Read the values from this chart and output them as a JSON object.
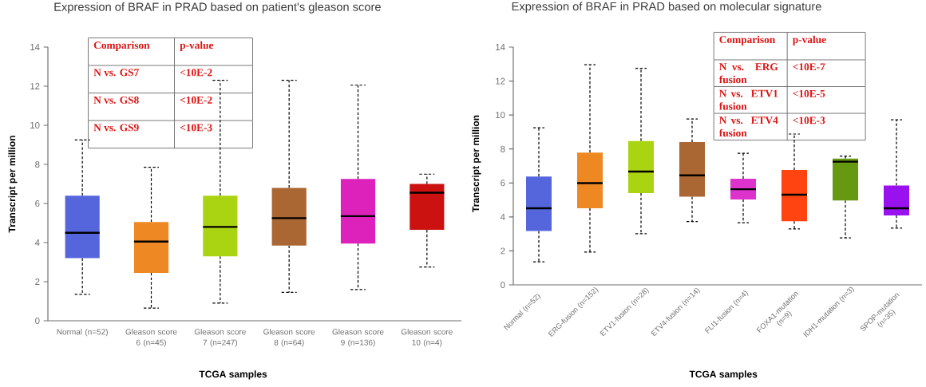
{
  "chart_data": [
    {
      "type": "box",
      "title": "Expression of BRAF in PRAD based on patient's gleason score",
      "xlabel": "TCGA samples",
      "ylabel": "Transcript per million",
      "categories": [
        "Normal (n=52)",
        "Gleason score 6 (n=45)",
        "Gleason score 7 (n=247)",
        "Gleason score 8 (n=64)",
        "Gleason score 9 (n=136)",
        "Gleason score 10 (n=4)"
      ],
      "colors": [
        "#5566dd",
        "#ee8822",
        "#aad411",
        "#aa6633",
        "#dd22bb",
        "#cc1111"
      ],
      "boxes": [
        {
          "low": 1.35,
          "q1": 3.2,
          "median": 4.5,
          "q3": 6.4,
          "high": 9.25
        },
        {
          "low": 0.65,
          "q1": 2.45,
          "median": 4.05,
          "q3": 5.05,
          "high": 7.85
        },
        {
          "low": 0.9,
          "q1": 3.3,
          "median": 4.8,
          "q3": 6.4,
          "high": 12.3
        },
        {
          "low": 1.45,
          "q1": 3.85,
          "median": 5.25,
          "q3": 6.8,
          "high": 12.3
        },
        {
          "low": 1.6,
          "q1": 3.95,
          "median": 5.35,
          "q3": 7.25,
          "high": 12.05
        },
        {
          "low": 2.75,
          "q1": 4.65,
          "median": 6.55,
          "q3": 7.0,
          "high": 7.5
        }
      ],
      "ylim": [
        0,
        14
      ],
      "yticks": [
        0,
        2,
        4,
        6,
        8,
        10,
        12,
        14
      ],
      "annotations": [
        "Comparison",
        "p-value",
        "N vs.    GS7",
        "<10E-2",
        "N vs.    GS8",
        "<10E-2",
        "N vs.    GS9",
        "<10E-3"
      ]
    },
    {
      "type": "box",
      "title": "Expression of BRAF in PRAD based on molecular signature",
      "xlabel": "TCGA samples",
      "ylabel": "Transcript per million",
      "categories": [
        "Normal (n=52)",
        "ERG-fusion (n=152)",
        "ETV1-fusion (n=28)",
        "ETV4-fusion (n=14)",
        "FLI1-fusion (n=4)",
        "FOXA1-mutation (n=9)",
        "IDH1-mutation (n=3)",
        "SPOP-mutation (n=35)"
      ],
      "colors": [
        "#5566dd",
        "#ee8822",
        "#aad411",
        "#aa6633",
        "#dd33cc",
        "#ff4411",
        "#669911",
        "#9911ee"
      ],
      "boxes": [
        {
          "low": 1.36,
          "q1": 3.17,
          "median": 4.51,
          "q3": 6.38,
          "high": 9.25
        },
        {
          "low": 1.93,
          "q1": 4.51,
          "median": 5.99,
          "q3": 7.79,
          "high": 12.96
        },
        {
          "low": 3.01,
          "q1": 5.4,
          "median": 6.67,
          "q3": 8.47,
          "high": 12.75
        },
        {
          "low": 3.73,
          "q1": 5.19,
          "median": 6.45,
          "q3": 8.41,
          "high": 9.77
        },
        {
          "low": 3.66,
          "q1": 5.03,
          "median": 5.63,
          "q3": 6.25,
          "high": 7.75
        },
        {
          "low": 3.29,
          "q1": 3.75,
          "median": 5.31,
          "q3": 6.76,
          "high": 8.88
        },
        {
          "low": 2.77,
          "q1": 4.97,
          "median": 7.25,
          "q3": 7.44,
          "high": 7.58
        },
        {
          "low": 3.34,
          "q1": 4.09,
          "median": 4.51,
          "q3": 5.85,
          "high": 9.72
        }
      ],
      "ylim": [
        0,
        14
      ],
      "yticks": [
        0,
        2,
        4,
        6,
        8,
        10,
        12,
        14
      ],
      "annotations": [
        "Comparison",
        "p-value",
        "N vs. ERG fusion",
        "<10E-7",
        "N vs. ETV1 fusion",
        "<10E-5",
        "N vs. ETV4 fusion",
        "<10E-3"
      ]
    }
  ]
}
